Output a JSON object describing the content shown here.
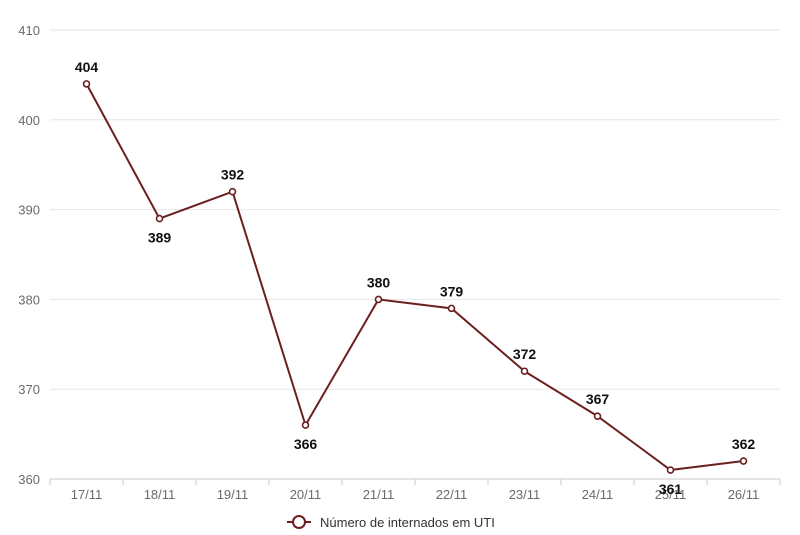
{
  "chart_data": {
    "type": "line",
    "categories": [
      "17/11",
      "18/11",
      "19/11",
      "20/11",
      "21/11",
      "22/11",
      "23/11",
      "24/11",
      "25/11",
      "26/11"
    ],
    "series": [
      {
        "name": "Número de internados em UTI",
        "values": [
          404,
          389,
          392,
          366,
          380,
          379,
          372,
          367,
          361,
          362
        ],
        "color": "#6b1f1f"
      }
    ],
    "ylim": [
      360,
      410
    ],
    "yticks": [
      360,
      370,
      380,
      390,
      400,
      410
    ],
    "grid": true,
    "legend_position": "bottom-center",
    "data_labels": true
  }
}
